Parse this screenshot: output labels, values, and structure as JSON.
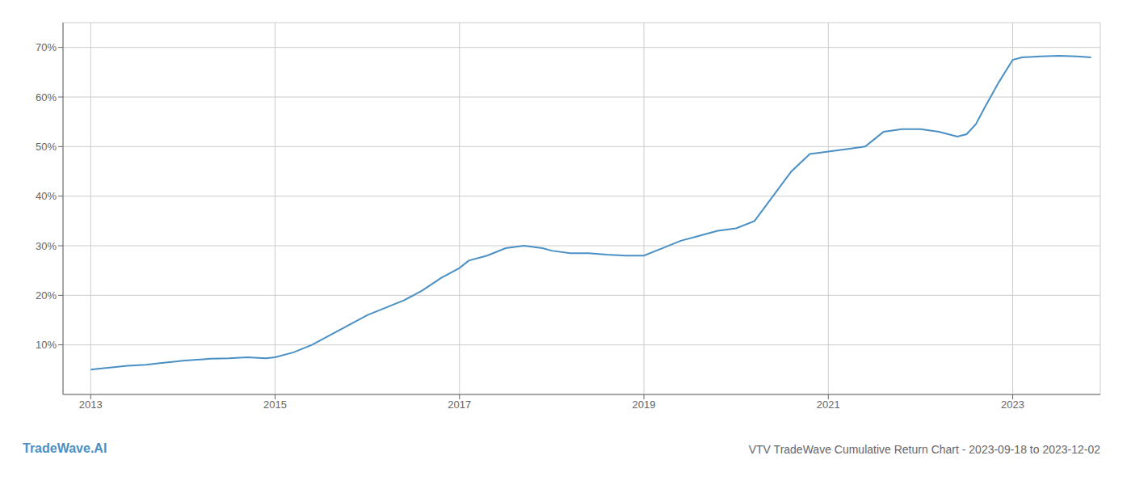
{
  "chart_data": {
    "type": "line",
    "title": "VTV TradeWave Cumulative Return Chart - 2023-09-18 to 2023-12-02",
    "annotations": [
      "TradeWave.AI"
    ],
    "color": "#4a90c4",
    "grid": true,
    "x": [
      2013.0,
      2013.1,
      2013.25,
      2013.4,
      2013.6,
      2013.75,
      2013.9,
      2014.0,
      2014.15,
      2014.3,
      2014.5,
      2014.7,
      2014.9,
      2015.0,
      2015.2,
      2015.4,
      2015.6,
      2015.8,
      2016.0,
      2016.2,
      2016.4,
      2016.6,
      2016.8,
      2017.0,
      2017.1,
      2017.3,
      2017.5,
      2017.7,
      2017.9,
      2018.0,
      2018.2,
      2018.4,
      2018.6,
      2018.8,
      2019.0,
      2019.2,
      2019.4,
      2019.6,
      2019.8,
      2020.0,
      2020.2,
      2020.4,
      2020.6,
      2020.8,
      2021.0,
      2021.2,
      2021.4,
      2021.5,
      2021.6,
      2021.8,
      2022.0,
      2022.2,
      2022.4,
      2022.5,
      2022.6,
      2022.7,
      2022.85,
      2023.0,
      2023.1,
      2023.3,
      2023.5,
      2023.7,
      2023.85
    ],
    "values": [
      5.0,
      5.2,
      5.5,
      5.8,
      6.0,
      6.3,
      6.6,
      6.8,
      7.0,
      7.2,
      7.3,
      7.5,
      7.3,
      7.5,
      8.5,
      10.0,
      12.0,
      14.0,
      16.0,
      17.5,
      19.0,
      21.0,
      23.5,
      25.5,
      27.0,
      28.0,
      29.5,
      30.0,
      29.5,
      29.0,
      28.5,
      28.5,
      28.2,
      28.0,
      28.0,
      29.5,
      31.0,
      32.0,
      33.0,
      33.5,
      35.0,
      40.0,
      45.0,
      48.5,
      49.0,
      49.5,
      50.0,
      51.5,
      53.0,
      53.5,
      53.5,
      53.0,
      52.0,
      52.5,
      54.5,
      58.0,
      63.0,
      67.5,
      68.0,
      68.2,
      68.3,
      68.2,
      68.0
    ],
    "xlim": [
      2012.7,
      2023.95
    ],
    "ylim": [
      0,
      75
    ],
    "xticks": [
      2013,
      2015,
      2017,
      2019,
      2021,
      2023
    ],
    "yticks": [
      {
        "value": 10,
        "label": "10%"
      },
      {
        "value": 20,
        "label": "20%"
      },
      {
        "value": 30,
        "label": "30%"
      },
      {
        "value": 40,
        "label": "40%"
      },
      {
        "value": 50,
        "label": "50%"
      },
      {
        "value": 60,
        "label": "60%"
      },
      {
        "value": 70,
        "label": "70%"
      }
    ]
  }
}
